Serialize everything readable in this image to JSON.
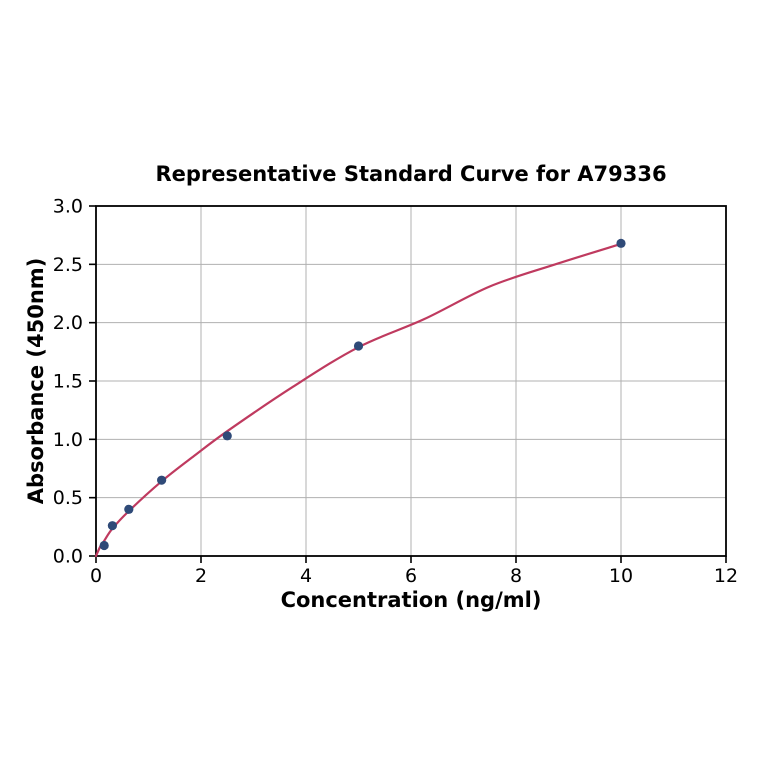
{
  "figure": {
    "background": "#ffffff"
  },
  "chart_data": {
    "type": "scatter",
    "title": "Representative Standard Curve for A79336",
    "xlabel": "Concentration (ng/ml)",
    "ylabel": "Absorbance (450nm)",
    "xlim": [
      0,
      12
    ],
    "ylim": [
      0.0,
      3.0
    ],
    "xticks": [
      0,
      2,
      4,
      6,
      8,
      10,
      12
    ],
    "xtick_labels": [
      "0",
      "2",
      "4",
      "6",
      "8",
      "10",
      "12"
    ],
    "yticks": [
      0.0,
      0.5,
      1.0,
      1.5,
      2.0,
      2.5,
      3.0
    ],
    "ytick_labels": [
      "0.0",
      "0.5",
      "1.0",
      "1.5",
      "2.0",
      "2.5",
      "3.0"
    ],
    "grid": true,
    "legend": "none",
    "points": [
      {
        "x": 0.156,
        "y": 0.09
      },
      {
        "x": 0.3125,
        "y": 0.26
      },
      {
        "x": 0.625,
        "y": 0.4
      },
      {
        "x": 1.25,
        "y": 0.65
      },
      {
        "x": 2.5,
        "y": 1.03
      },
      {
        "x": 5,
        "y": 1.8
      },
      {
        "x": 10,
        "y": 2.68
      }
    ],
    "fit_curve": {
      "type": "smooth",
      "samples": [
        [
          0,
          0.0
        ],
        [
          0.08,
          0.08
        ],
        [
          0.156,
          0.13
        ],
        [
          0.3125,
          0.235
        ],
        [
          0.625,
          0.385
        ],
        [
          1.25,
          0.64
        ],
        [
          1.875,
          0.86
        ],
        [
          2.5,
          1.07
        ],
        [
          3.75,
          1.45
        ],
        [
          5,
          1.79
        ],
        [
          6.25,
          2.03
        ],
        [
          7.5,
          2.31
        ],
        [
          8.75,
          2.5
        ],
        [
          10,
          2.675
        ]
      ]
    },
    "colors": {
      "curve": "#bf3a5f",
      "marker": "#2f4a78",
      "grid": "#b0b0b0",
      "axis": "#000000",
      "text": "#000000"
    }
  }
}
